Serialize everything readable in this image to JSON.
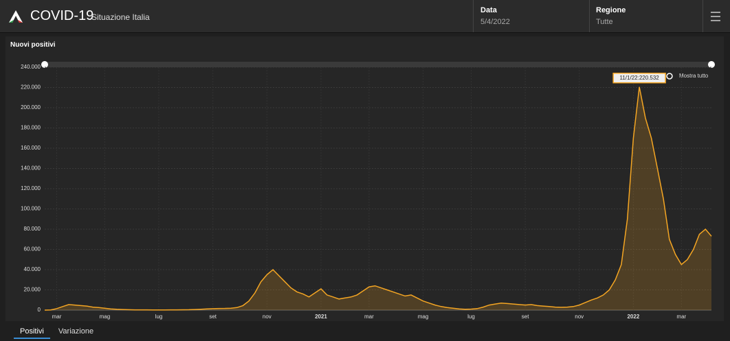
{
  "header": {
    "title": "COVID-19",
    "subtitle": "Situazione Italia",
    "date_label": "Data",
    "date_value": "5/4/2022",
    "region_label": "Regione",
    "region_value": "Tutte"
  },
  "tabs": [
    "Positivi",
    "Variazione"
  ],
  "chart_data": {
    "type": "area",
    "title": "Nuovi positivi",
    "color": "#f5a623",
    "grid": true,
    "annotation": "11/1/22:220.532",
    "zoom_button": "Mostra tutto",
    "ylim": [
      0,
      240000
    ],
    "yticks": [
      0,
      {
        "value": 20000,
        "label": "20.000"
      },
      {
        "value": 40000,
        "label": "40.000"
      },
      {
        "value": 60000,
        "label": "60.000"
      },
      {
        "value": 80000,
        "label": "80.000"
      },
      {
        "value": 100000,
        "label": "100.000"
      },
      {
        "value": 120000,
        "label": "120.000"
      },
      {
        "value": 140000,
        "label": "140.000"
      },
      {
        "value": 160000,
        "label": "160.000"
      },
      {
        "value": 180000,
        "label": "180.000"
      },
      {
        "value": 200000,
        "label": "200.000"
      },
      {
        "value": 220000,
        "label": "220.000"
      },
      {
        "value": 240000,
        "label": "240.000"
      }
    ],
    "categories": [
      null,
      null,
      "mar",
      null,
      null,
      null,
      null,
      null,
      null,
      null,
      "mag",
      null,
      null,
      null,
      null,
      null,
      null,
      null,
      null,
      "lug",
      null,
      null,
      null,
      null,
      null,
      null,
      null,
      null,
      "set",
      null,
      null,
      null,
      null,
      null,
      null,
      null,
      null,
      "nov",
      null,
      null,
      null,
      null,
      null,
      null,
      null,
      null,
      "2021",
      null,
      null,
      null,
      null,
      null,
      null,
      null,
      "mar",
      null,
      null,
      null,
      null,
      null,
      null,
      null,
      null,
      "mag",
      null,
      null,
      null,
      null,
      null,
      null,
      null,
      "lug",
      null,
      null,
      null,
      null,
      null,
      null,
      null,
      null,
      "set",
      null,
      null,
      null,
      null,
      null,
      null,
      null,
      null,
      "nov",
      null,
      null,
      null,
      null,
      null,
      null,
      null,
      null,
      "2022",
      null,
      null,
      null,
      null,
      null,
      null,
      null,
      "mar",
      null,
      null,
      null,
      null,
      null
    ],
    "values": [
      0,
      200,
      1500,
      3500,
      5500,
      5000,
      4500,
      4000,
      3000,
      2500,
      1800,
      1200,
      800,
      600,
      400,
      300,
      250,
      250,
      200,
      200,
      200,
      250,
      300,
      350,
      400,
      600,
      900,
      1200,
      1400,
      1600,
      1700,
      1900,
      2500,
      4500,
      9000,
      17000,
      28000,
      35000,
      40000,
      34000,
      28000,
      22000,
      18000,
      16000,
      13000,
      17000,
      21000,
      15000,
      13000,
      11000,
      12000,
      13000,
      15000,
      19000,
      23000,
      24000,
      22000,
      20000,
      18000,
      16000,
      14000,
      15000,
      12000,
      9000,
      7000,
      5000,
      3500,
      2500,
      1800,
      1200,
      900,
      1000,
      1500,
      3000,
      5000,
      6000,
      7000,
      6500,
      6000,
      5500,
      5000,
      5500,
      4500,
      4000,
      3500,
      3000,
      2800,
      3000,
      3500,
      5000,
      7500,
      10000,
      12000,
      15000,
      20000,
      30000,
      45000,
      90000,
      170000,
      220532,
      190000,
      170000,
      140000,
      110000,
      70000,
      55000,
      45000,
      50000,
      60000,
      75000,
      80000,
      73000
    ]
  }
}
